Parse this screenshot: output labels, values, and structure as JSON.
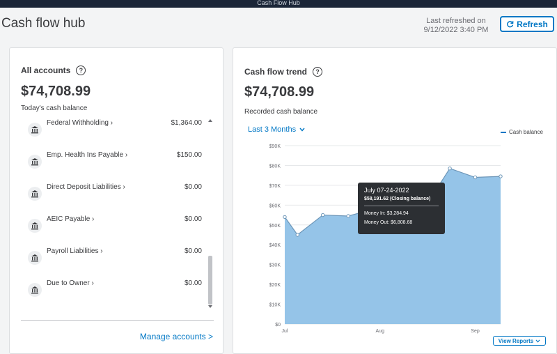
{
  "window": {
    "title": "Cash Flow Hub"
  },
  "header": {
    "page_title": "Cash flow hub",
    "last_refreshed_label": "Last refreshed on",
    "last_refreshed_value": "9/12/2022 3:40 PM",
    "refresh_label": "Refresh"
  },
  "accounts_card": {
    "title": "All accounts",
    "help_glyph": "?",
    "total": "$74,708.99",
    "total_label": "Today's cash balance",
    "items": [
      {
        "name": "Federal Withholding",
        "balance": "$1,364.00",
        "icon": "bank-icon"
      },
      {
        "name": "Emp. Health Ins Payable",
        "balance": "$150.00",
        "icon": "bank-icon"
      },
      {
        "name": "Direct Deposit Liabilities",
        "balance": "$0.00",
        "icon": "bank-icon"
      },
      {
        "name": "AEIC Payable",
        "balance": "$0.00",
        "icon": "bank-icon"
      },
      {
        "name": "Payroll Liabilities",
        "balance": "$0.00",
        "icon": "bank-icon"
      },
      {
        "name": "Due to Owner",
        "balance": "$0.00",
        "icon": "bank-icon"
      }
    ],
    "manage_label": "Manage accounts >"
  },
  "trend_card": {
    "title": "Cash flow trend",
    "help_glyph": "?",
    "total": "$74,708.99",
    "total_label": "Recorded cash balance",
    "range_label": "Last 3 Months",
    "legend_label": "Cash balance",
    "view_reports_label": "View Reports",
    "tooltip": {
      "date": "July 07-24-2022",
      "closing": "$58,191.62 (Closing balance)",
      "money_in": "Money In: $3,284.94",
      "money_out": "Money Out: $6,808.68"
    }
  },
  "chart_data": {
    "type": "area",
    "series": [
      {
        "name": "Cash balance",
        "values": [
          54000,
          45000,
          55000,
          54500,
          58000,
          60000,
          60500,
          58500,
          78500,
          74000,
          74500
        ]
      }
    ],
    "x": [
      0,
      1,
      3,
      5,
      7,
      8,
      10,
      11,
      13,
      15,
      17
    ],
    "x_tick_labels": [
      "Jul",
      "Aug",
      "Sep"
    ],
    "x_tick_positions": [
      0,
      7.5,
      15
    ],
    "y_tick_labels": [
      "$0",
      "$10K",
      "$20K",
      "$30K",
      "$40K",
      "$50K",
      "$60K",
      "$70K",
      "$80K",
      "$90K"
    ],
    "ylim": [
      0,
      90000
    ],
    "grid": true,
    "legend": "top-right",
    "colors": {
      "fill": "#95c4e8",
      "line": "#6d96b8",
      "point": "#ffffff"
    }
  }
}
